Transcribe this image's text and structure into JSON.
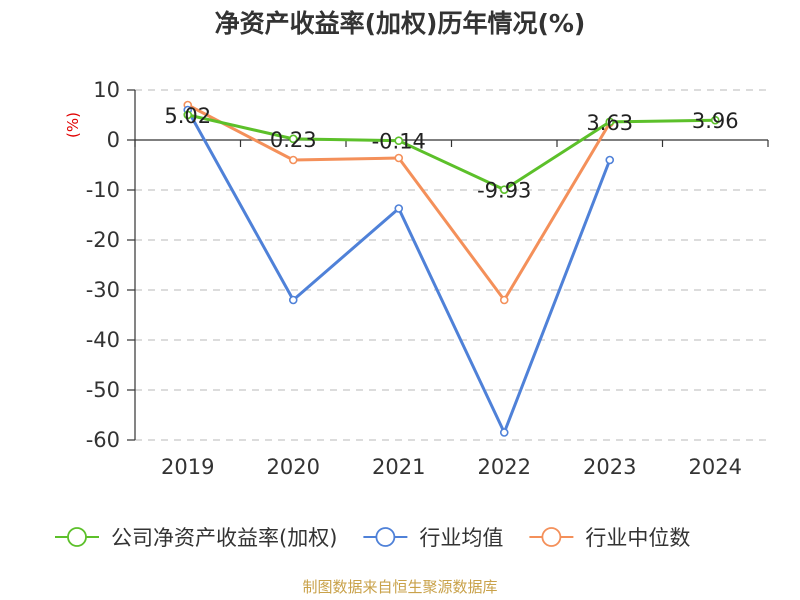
{
  "chart_data": {
    "type": "line",
    "title": "净资产收益率(加权)历年情况(%)",
    "ylabel": "(%)",
    "xlabel": "",
    "categories": [
      "2019",
      "2020",
      "2021",
      "2022",
      "2023",
      "2024"
    ],
    "ylim": [
      -60,
      10
    ],
    "yticks": [
      10,
      0,
      -10,
      -20,
      -30,
      -40,
      -50,
      -60
    ],
    "grid": true,
    "legend_position": "bottom",
    "series": [
      {
        "name": "公司净资产收益率(加权)",
        "color": "#5cc02a",
        "values": [
          5.02,
          0.23,
          -0.14,
          -9.93,
          3.63,
          3.96
        ],
        "labels": [
          "5.02",
          "0.23",
          "-0.14",
          "-9.93",
          "3.63",
          "3.96"
        ]
      },
      {
        "name": "行业均值",
        "color": "#4f81d8",
        "values": [
          6.0,
          -32.0,
          -13.7,
          -58.5,
          -4.0,
          null
        ]
      },
      {
        "name": "行业中位数",
        "color": "#f4905a",
        "values": [
          7.0,
          -4.0,
          -3.6,
          -32.0,
          3.4,
          null
        ]
      }
    ]
  },
  "source": "制图数据来自恒生聚源数据库"
}
